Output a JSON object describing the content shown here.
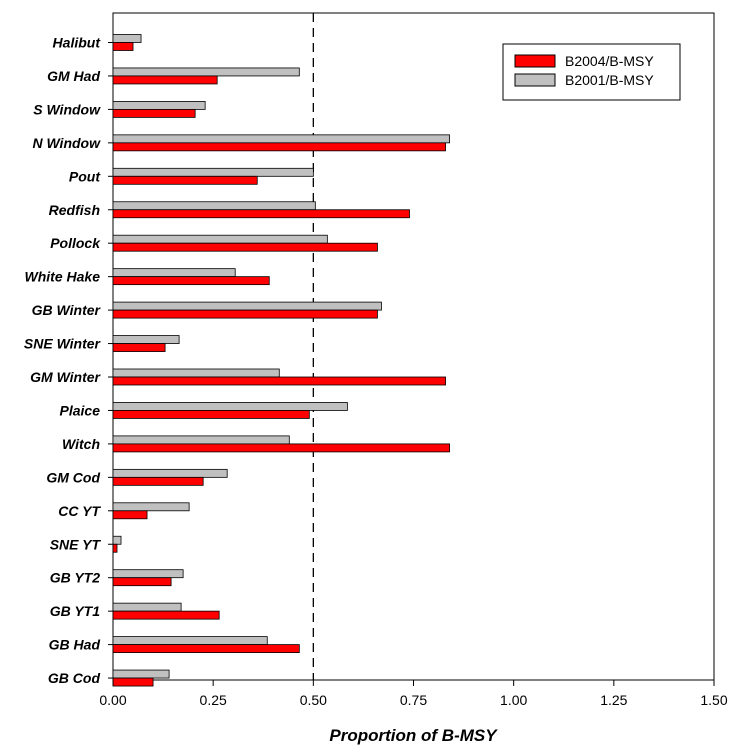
{
  "chart_data": {
    "type": "bar",
    "orientation": "horizontal",
    "categories": [
      "Halibut",
      "GM Had",
      "S Window",
      "N Window",
      "Pout",
      "Redfish",
      "Pollock",
      "White Hake",
      "GB Winter",
      "SNE Winter",
      "GM Winter",
      "Plaice",
      "Witch",
      "GM Cod",
      "CC YT",
      "SNE YT",
      "GB YT2",
      "GB YT1",
      "GB Had",
      "GB Cod"
    ],
    "series": [
      {
        "name": "B2004/B-MSY",
        "color": "#ff0000",
        "values": [
          0.05,
          0.26,
          0.205,
          0.83,
          0.36,
          0.74,
          0.66,
          0.39,
          0.66,
          0.13,
          0.83,
          0.49,
          0.84,
          0.225,
          0.085,
          0.01,
          0.145,
          0.265,
          0.465,
          0.1
        ]
      },
      {
        "name": "B2001/B-MSY",
        "color": "#c0c0c0",
        "values": [
          0.07,
          0.465,
          0.23,
          0.84,
          0.5,
          0.505,
          0.535,
          0.305,
          0.67,
          0.165,
          0.415,
          0.585,
          0.44,
          0.285,
          0.19,
          0.02,
          0.175,
          0.17,
          0.385,
          0.14
        ]
      }
    ],
    "xlim": [
      0,
      1.5
    ],
    "xticks": [
      "0.00",
      "0.25",
      "0.50",
      "0.75",
      "1.00",
      "1.25",
      "1.50"
    ],
    "xtick_values": [
      0,
      0.25,
      0.5,
      0.75,
      1.0,
      1.25,
      1.5
    ],
    "reference_line": 0.5,
    "xlabel": "Proportion of B-MSY",
    "ylabel": "",
    "title": "",
    "grid": false,
    "legend_position": "top-right"
  }
}
